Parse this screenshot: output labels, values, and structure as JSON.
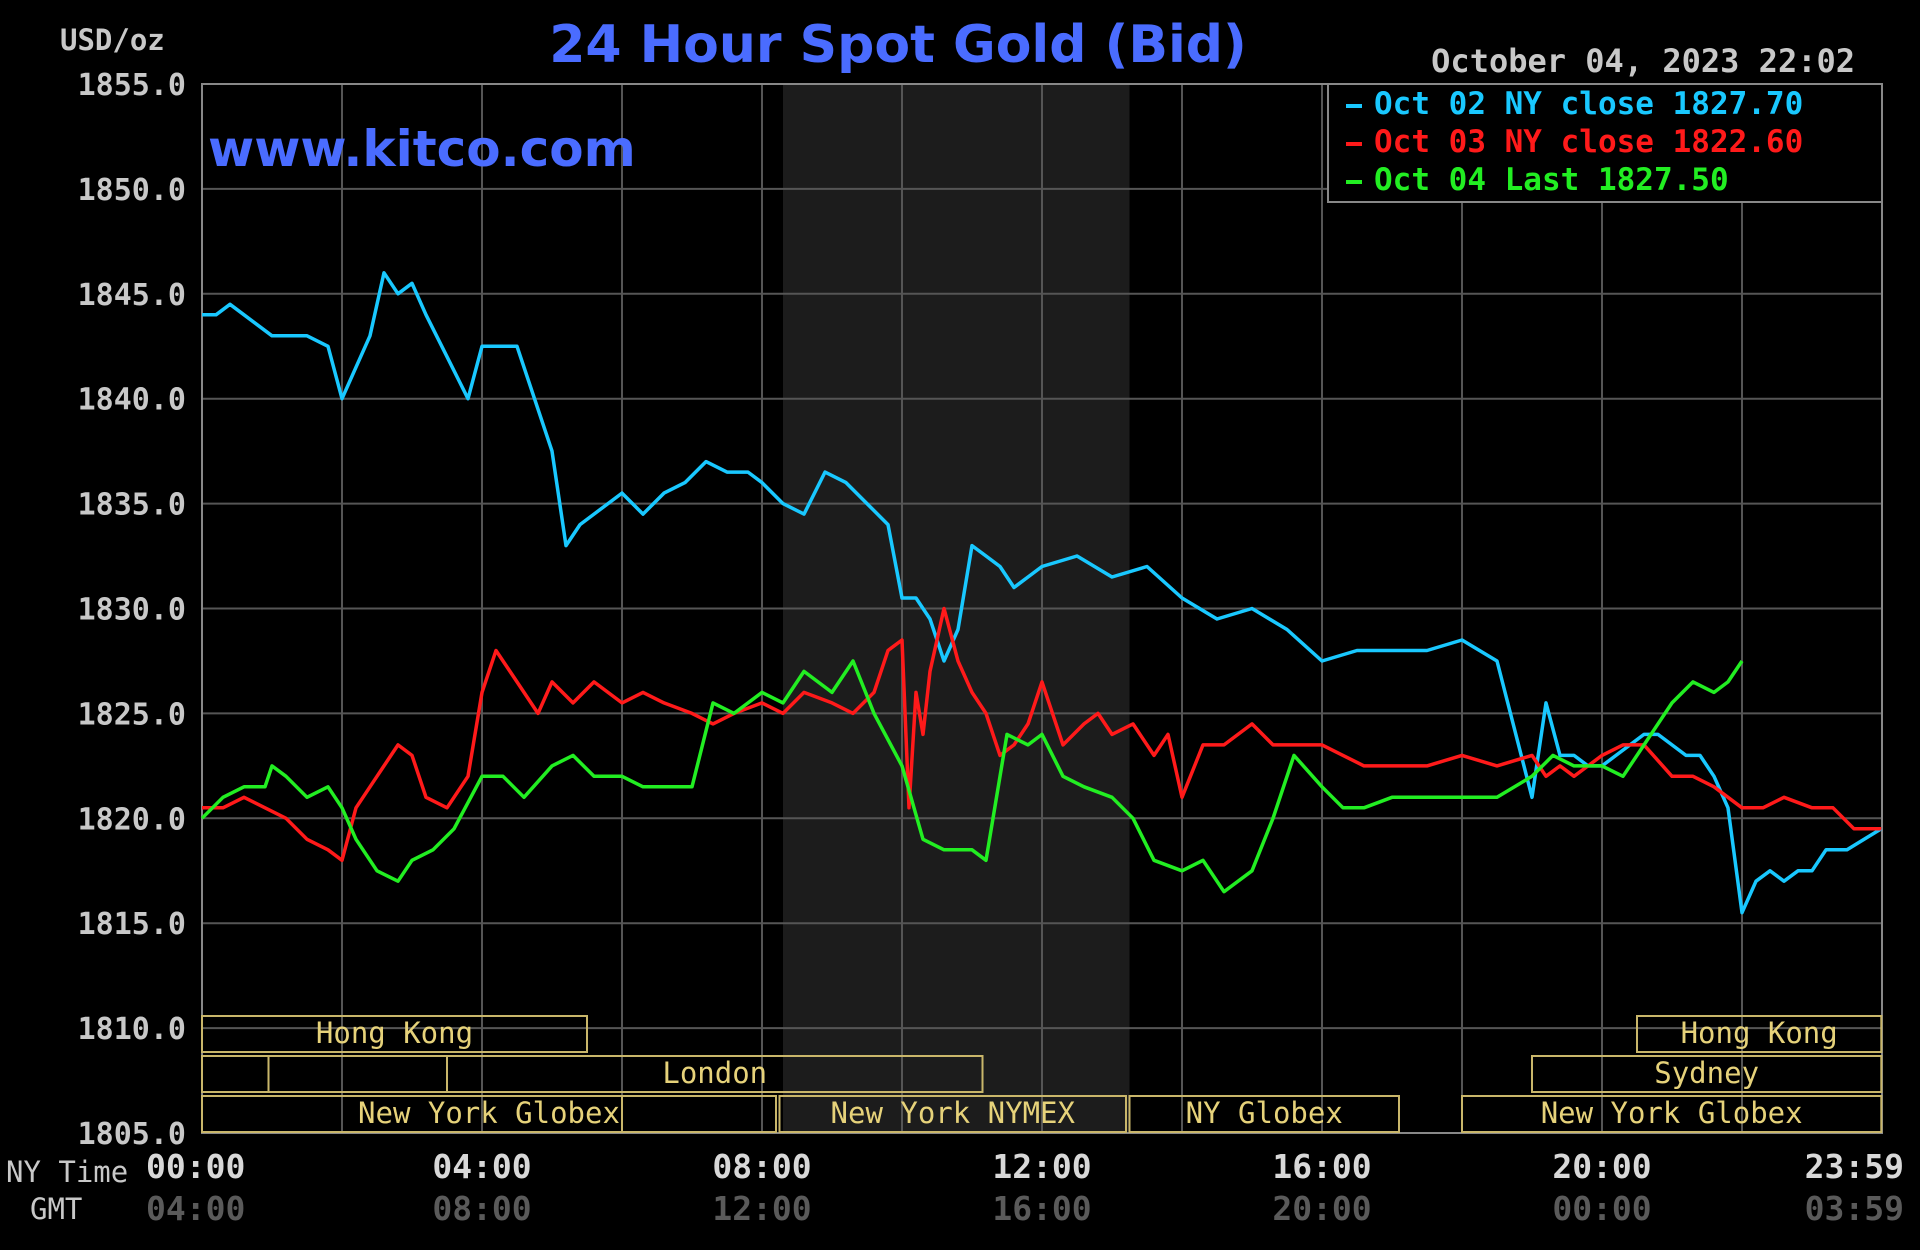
{
  "chart_data": {
    "type": "line",
    "title": "24 Hour Spot Gold (Bid)",
    "ylabel": "USD/oz",
    "timestamp": "October 04, 2023 22:02",
    "watermark": "www.kitco.com",
    "ylim": [
      1805,
      1855
    ],
    "yticks": [
      "1855.0",
      "1850.0",
      "1845.0",
      "1840.0",
      "1835.0",
      "1830.0",
      "1825.0",
      "1820.0",
      "1815.0",
      "1810.0",
      "1805.0"
    ],
    "x_row_labels": [
      "NY Time",
      "GMT"
    ],
    "xticks_ny": [
      "00:00",
      "04:00",
      "08:00",
      "12:00",
      "16:00",
      "20:00",
      "23:59"
    ],
    "xticks_gmt": [
      "04:00",
      "08:00",
      "12:00",
      "16:00",
      "20:00",
      "00:00",
      "03:59"
    ],
    "xtick_hours": [
      0,
      4,
      8,
      12,
      16,
      20,
      23.983
    ],
    "grid": true,
    "legend_position": "top-right",
    "legend": [
      {
        "text": "Oct 02 NY close 1827.70",
        "color": "#19c8ff"
      },
      {
        "text": "Oct 03 NY close 1822.60",
        "color": "#ff1a1a"
      },
      {
        "text": "Oct 04 Last 1827.50",
        "color": "#22ee22"
      }
    ],
    "series": [
      {
        "name": "Oct 02",
        "color": "#19c8ff",
        "x": [
          0,
          0.2,
          0.4,
          0.6,
          0.8,
          1.0,
          1.2,
          1.5,
          1.8,
          2.0,
          2.2,
          2.4,
          2.6,
          2.8,
          3.0,
          3.2,
          3.5,
          3.8,
          4.0,
          4.2,
          4.5,
          4.8,
          5.0,
          5.2,
          5.4,
          5.6,
          5.8,
          6.0,
          6.3,
          6.6,
          6.9,
          7.2,
          7.5,
          7.8,
          8.0,
          8.3,
          8.6,
          8.9,
          9.2,
          9.5,
          9.8,
          10.0,
          10.2,
          10.4,
          10.6,
          10.8,
          11.0,
          11.2,
          11.4,
          11.6,
          11.8,
          12.0,
          12.5,
          13.0,
          13.5,
          14.0,
          14.5,
          15.0,
          15.5,
          16.0,
          16.5,
          17.0,
          17.5,
          18.0,
          18.5,
          19.0,
          19.2,
          19.4,
          19.6,
          19.8,
          20.0,
          20.2,
          20.4,
          20.6,
          20.8,
          21.0,
          21.2,
          21.4,
          21.6,
          21.8,
          22.0,
          22.2,
          22.4,
          22.6,
          22.8,
          23.0,
          23.2,
          23.5,
          23.99
        ],
        "y": [
          1844,
          1844,
          1844.5,
          1844,
          1843.5,
          1843,
          1843,
          1843,
          1842.5,
          1840,
          1841.5,
          1843,
          1846,
          1845,
          1845.5,
          1844,
          1842,
          1840,
          1842.5,
          1842.5,
          1842.5,
          1839.5,
          1837.5,
          1833,
          1834,
          1834.5,
          1835,
          1835.5,
          1834.5,
          1835.5,
          1836,
          1837,
          1836.5,
          1836.5,
          1836,
          1835,
          1834.5,
          1836.5,
          1836,
          1835,
          1834,
          1830.5,
          1830.5,
          1829.5,
          1827.5,
          1829,
          1833,
          1832.5,
          1832,
          1831,
          1831.5,
          1832,
          1832.5,
          1831.5,
          1832,
          1830.5,
          1829.5,
          1830,
          1829,
          1827.5,
          1828,
          1828,
          1828,
          1828.5,
          1827.5,
          1821,
          1825.5,
          1823,
          1823,
          1822.5,
          1822.5,
          1823,
          1823.5,
          1824,
          1824,
          1823.5,
          1823,
          1823,
          1822,
          1820.5,
          1815.5,
          1817,
          1817.5,
          1817,
          1817.5,
          1817.5,
          1818.5,
          1818.5,
          1819.5
        ]
      },
      {
        "name": "Oct 03",
        "color": "#ff1a1a",
        "x": [
          0,
          0.3,
          0.6,
          0.9,
          1.2,
          1.5,
          1.8,
          2.0,
          2.2,
          2.5,
          2.8,
          3.0,
          3.2,
          3.5,
          3.8,
          4.0,
          4.2,
          4.5,
          4.8,
          5.0,
          5.3,
          5.6,
          6.0,
          6.3,
          6.6,
          7.0,
          7.3,
          7.6,
          8.0,
          8.3,
          8.6,
          9.0,
          9.3,
          9.6,
          9.8,
          10.0,
          10.1,
          10.2,
          10.3,
          10.4,
          10.6,
          10.8,
          11.0,
          11.2,
          11.4,
          11.6,
          11.8,
          12.0,
          12.3,
          12.6,
          12.8,
          13.0,
          13.3,
          13.6,
          13.8,
          14.0,
          14.3,
          14.6,
          15.0,
          15.3,
          15.6,
          16.0,
          16.3,
          16.6,
          17.0,
          17.5,
          18.0,
          18.5,
          19.0,
          19.2,
          19.4,
          19.6,
          19.8,
          20.0,
          20.3,
          20.6,
          21.0,
          21.3,
          21.6,
          22.0,
          22.3,
          22.6,
          23.0,
          23.3,
          23.6,
          23.99
        ],
        "y": [
          1820.5,
          1820.5,
          1821,
          1820.5,
          1820,
          1819,
          1818.5,
          1818,
          1820.5,
          1822,
          1823.5,
          1823,
          1821,
          1820.5,
          1822,
          1826,
          1828,
          1826.5,
          1825,
          1826.5,
          1825.5,
          1826.5,
          1825.5,
          1826,
          1825.5,
          1825,
          1824.5,
          1825,
          1825.5,
          1825,
          1826,
          1825.5,
          1825,
          1826,
          1828,
          1828.5,
          1820.5,
          1826,
          1824,
          1827,
          1830,
          1827.5,
          1826,
          1825,
          1823,
          1823.5,
          1824.5,
          1826.5,
          1823.5,
          1824.5,
          1825,
          1824,
          1824.5,
          1823,
          1824,
          1821,
          1823.5,
          1823.5,
          1824.5,
          1823.5,
          1823.5,
          1823.5,
          1823,
          1822.5,
          1822.5,
          1822.5,
          1823,
          1822.5,
          1823,
          1822,
          1822.5,
          1822,
          1822.5,
          1823,
          1823.5,
          1823.5,
          1822,
          1822,
          1821.5,
          1820.5,
          1820.5,
          1821,
          1820.5,
          1820.5,
          1819.5,
          1819.5
        ]
      },
      {
        "name": "Oct 04",
        "color": "#22ee22",
        "x": [
          0,
          0.3,
          0.6,
          0.9,
          1.0,
          1.2,
          1.5,
          1.8,
          2.0,
          2.2,
          2.5,
          2.8,
          3.0,
          3.3,
          3.6,
          4.0,
          4.3,
          4.6,
          5.0,
          5.3,
          5.6,
          6.0,
          6.3,
          6.6,
          7.0,
          7.3,
          7.6,
          8.0,
          8.3,
          8.6,
          9.0,
          9.3,
          9.6,
          10.0,
          10.3,
          10.6,
          11.0,
          11.2,
          11.5,
          11.8,
          12.0,
          12.3,
          12.6,
          13.0,
          13.3,
          13.6,
          14.0,
          14.3,
          14.6,
          15.0,
          15.3,
          15.6,
          16.0,
          16.3,
          16.6,
          17.0,
          17.5,
          18.0,
          18.5,
          19.0,
          19.3,
          19.6,
          20.0,
          20.3,
          20.6,
          21.0,
          21.3,
          21.6,
          21.8,
          22.0
        ],
        "y": [
          1820,
          1821,
          1821.5,
          1821.5,
          1822.5,
          1822,
          1821,
          1821.5,
          1820.5,
          1819,
          1817.5,
          1817,
          1818,
          1818.5,
          1819.5,
          1822,
          1822,
          1821,
          1822.5,
          1823,
          1822,
          1822,
          1821.5,
          1821.5,
          1821.5,
          1825.5,
          1825,
          1826,
          1825.5,
          1827,
          1826,
          1827.5,
          1825,
          1822.5,
          1819,
          1818.5,
          1818.5,
          1818,
          1824,
          1823.5,
          1824,
          1822,
          1821.5,
          1821,
          1820,
          1818,
          1817.5,
          1818,
          1816.5,
          1817.5,
          1820,
          1823,
          1821.5,
          1820.5,
          1820.5,
          1821,
          1821,
          1821,
          1821,
          1822,
          1823,
          1822.5,
          1822.5,
          1822,
          1823.5,
          1825.5,
          1826.5,
          1826,
          1826.5,
          1827.5
        ]
      }
    ],
    "shaded_period": {
      "from_hour": 8.3,
      "to_hour": 13.25
    },
    "sessions": [
      {
        "label": "Hong Kong",
        "row": 0,
        "from_hour": 0,
        "to_hour": 5.5
      },
      {
        "label": "Hong Kong",
        "row": 0,
        "from_hour": 20.5,
        "to_hour": 23.99
      },
      {
        "label": "",
        "row": 1,
        "from_hour": 0,
        "to_hour": 0.95
      },
      {
        "label": "",
        "row": 1,
        "from_hour": 0.95,
        "to_hour": 3.5
      },
      {
        "label": "London",
        "row": 1,
        "from_hour": 3.5,
        "to_hour": 11.15
      },
      {
        "label": "Sydney",
        "row": 1,
        "from_hour": 19.0,
        "to_hour": 23.99
      },
      {
        "label": "",
        "row": 2,
        "from_hour": 0,
        "to_hour": 6.0
      },
      {
        "label": "New York Globex",
        "row": 2,
        "from_hour": 0,
        "to_hour": 8.2
      },
      {
        "label": "New York NYMEX",
        "row": 2,
        "from_hour": 8.25,
        "to_hour": 13.2
      },
      {
        "label": "NY Globex",
        "row": 2,
        "from_hour": 13.25,
        "to_hour": 17.1
      },
      {
        "label": "New York Globex",
        "row": 2,
        "from_hour": 18.0,
        "to_hour": 23.99
      }
    ]
  }
}
